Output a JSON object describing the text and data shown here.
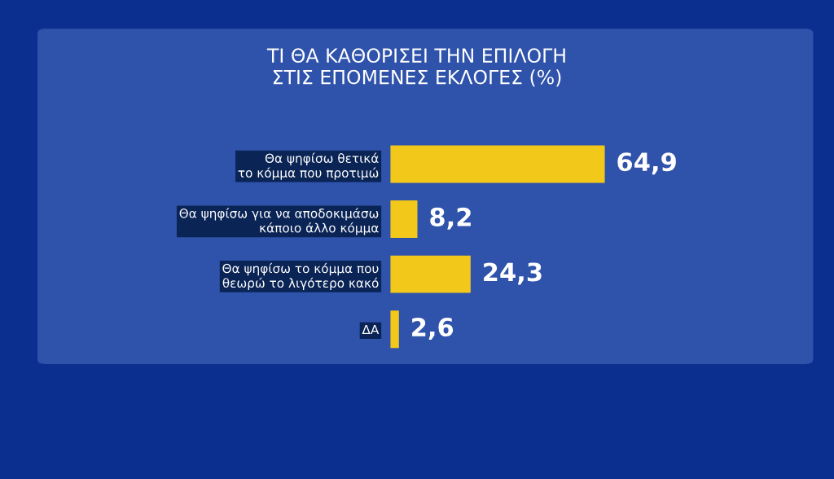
{
  "chart_data": {
    "type": "bar",
    "orientation": "horizontal",
    "title": "ΤΙ ΘΑ ΚΑΘΟΡΙΣΕΙ ΤΗΝ ΕΠΙΛΟΓΗ\nΣΤΙΣ ΕΠΟΜΕΝΕΣ ΕΚΛΟΓΕΣ (%)",
    "categories": [
      "Θα ψηφίσω θετικά\nτο κόμμα που προτιμώ",
      "Θα ψηφίσω για να αποδοκιμάσω\nκάποιο άλλο κόμμα",
      "Θα ψηφίσω το κόμμα που\nθεωρώ το λιγότερο κακό",
      "ΔΑ"
    ],
    "values": [
      64.9,
      8.2,
      24.3,
      2.6
    ],
    "value_labels": [
      "64,9",
      "8,2",
      "24,3",
      "2,6"
    ],
    "color": "#f2c81a"
  }
}
